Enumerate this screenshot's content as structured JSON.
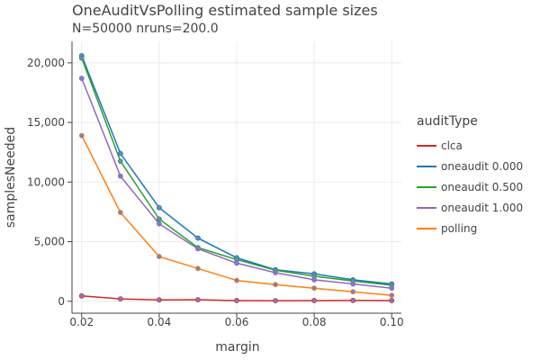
{
  "chart_data": {
    "type": "line",
    "title": "OneAuditVsPolling estimated sample sizes",
    "subtitle": "N=50000 nruns=200.0",
    "xlabel": "margin",
    "ylabel": "samplesNeeded",
    "xlim": [
      0.0175,
      0.1025
    ],
    "ylim": [
      -1000,
      21800
    ],
    "x_ticks": [
      0.02,
      0.04,
      0.06,
      0.08,
      0.1
    ],
    "x_tick_labels": [
      "0.02",
      "0.04",
      "0.06",
      "0.08",
      "0.10"
    ],
    "y_ticks": [
      0,
      5000,
      10000,
      15000,
      20000
    ],
    "y_tick_labels": [
      "0",
      "5,000",
      "10,000",
      "15,000",
      "20,000"
    ],
    "grid": true,
    "legend_title": "auditType",
    "legend_position": "right",
    "x": [
      0.02,
      0.03,
      0.04,
      0.05,
      0.06,
      0.07,
      0.08,
      0.09,
      0.1
    ],
    "series": [
      {
        "name": "clca",
        "color": "#d62728",
        "values": [
          450,
          200,
          120,
          130,
          60,
          50,
          60,
          70,
          60
        ]
      },
      {
        "name": "oneaudit 0.000",
        "color": "#1f77b4",
        "values": [
          20600,
          12400,
          7850,
          5300,
          3650,
          2650,
          2300,
          1800,
          1450
        ]
      },
      {
        "name": "oneaudit 0.500",
        "color": "#2ca02c",
        "values": [
          20400,
          11750,
          6900,
          4500,
          3500,
          2600,
          2100,
          1700,
          1350
        ]
      },
      {
        "name": "oneaudit 1.000",
        "color": "#9467bd",
        "values": [
          18700,
          10500,
          6500,
          4400,
          3200,
          2400,
          1800,
          1450,
          1100
        ]
      },
      {
        "name": "polling",
        "color": "#ff7f0e",
        "values": [
          13900,
          7450,
          3750,
          2750,
          1750,
          1400,
          1100,
          800,
          500
        ]
      }
    ],
    "marker_fill": "#6f83c9"
  }
}
